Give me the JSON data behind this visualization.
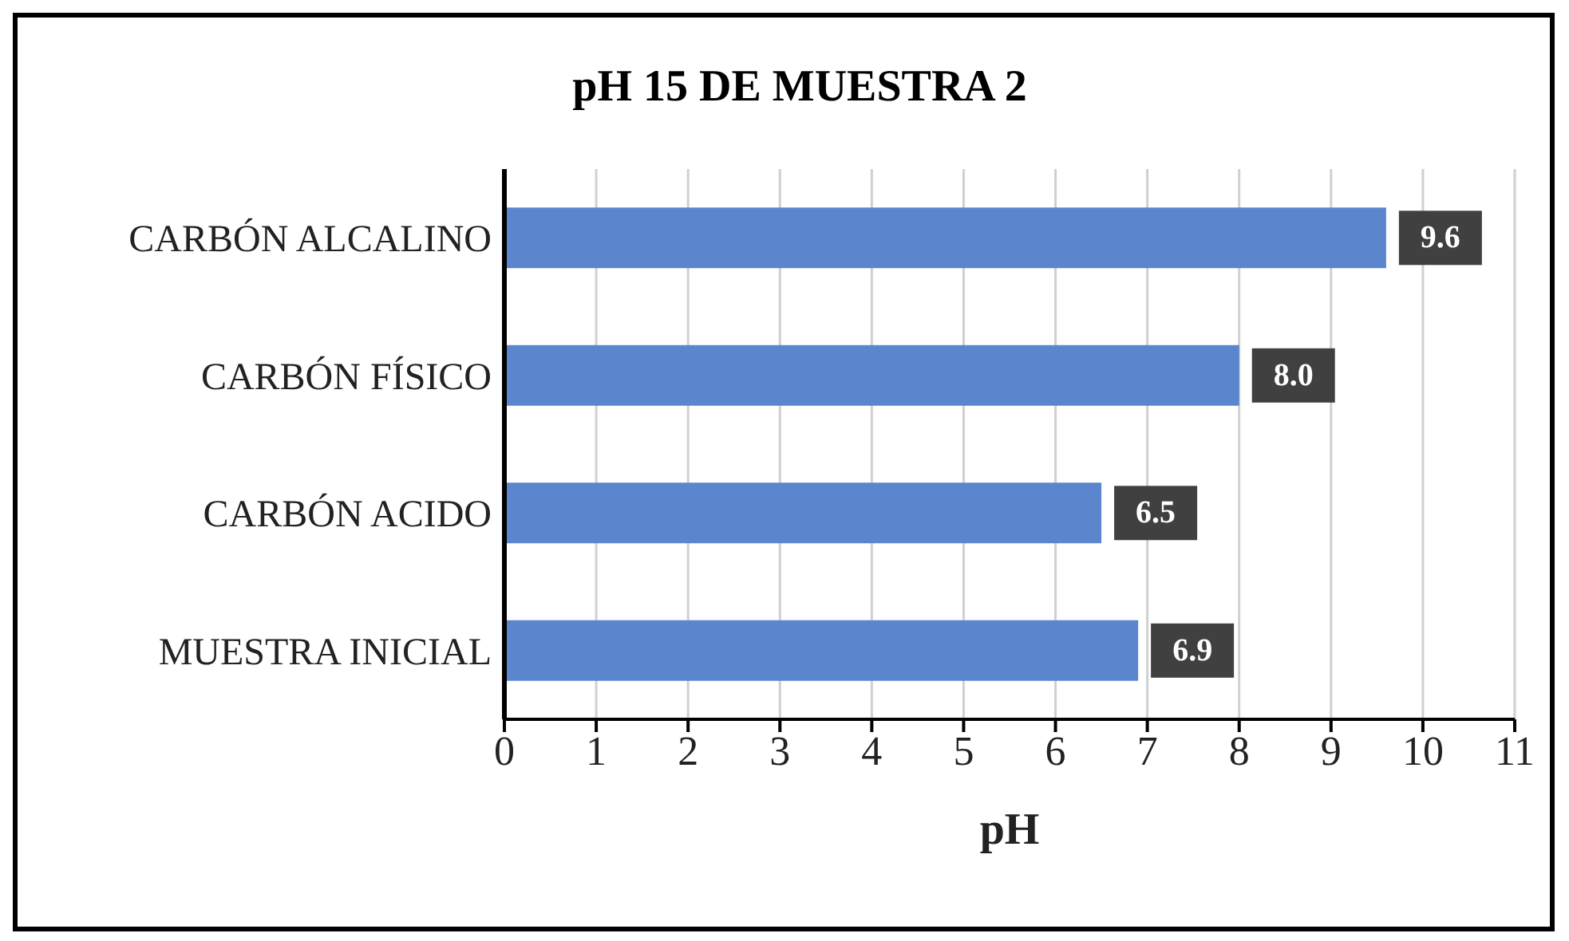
{
  "chart_data": {
    "type": "bar",
    "orientation": "horizontal",
    "title": "pH 15 DE MUESTRA 2",
    "xlabel": "pH",
    "categories": [
      "CARBÓN ALCALINO",
      "CARBÓN FÍSICO",
      "CARBÓN ACIDO",
      "MUESTRA INICIAL"
    ],
    "values": [
      9.6,
      8.0,
      6.5,
      6.9
    ],
    "value_labels": [
      "9.6",
      "8.0",
      "6.5",
      "6.9"
    ],
    "color": "#5b85cc",
    "xlim": [
      0,
      11
    ],
    "xticks": [
      0,
      1,
      2,
      3,
      4,
      5,
      6,
      7,
      8,
      9,
      10,
      11
    ],
    "grid": "x"
  }
}
